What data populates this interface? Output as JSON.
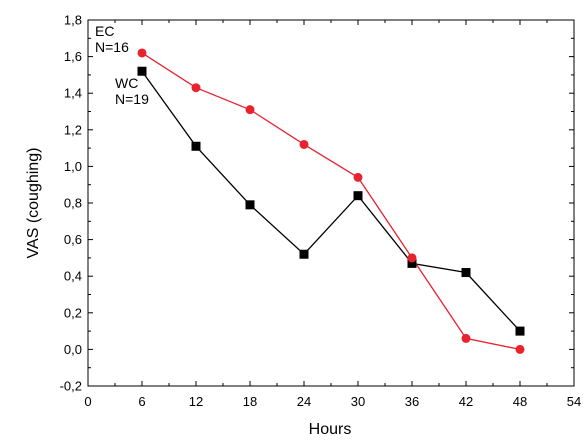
{
  "chart_data": {
    "type": "line",
    "title": "",
    "xlabel": "Hours",
    "ylabel": "VAS (coughing)",
    "xlim": [
      0,
      54
    ],
    "ylim": [
      -0.2,
      1.8
    ],
    "xticks": [
      0,
      6,
      12,
      18,
      24,
      30,
      36,
      42,
      48,
      54
    ],
    "xtick_labels": [
      "0",
      "6",
      "12",
      "18",
      "24",
      "30",
      "36",
      "42",
      "48",
      "54"
    ],
    "yticks": [
      -0.2,
      0.0,
      0.2,
      0.4,
      0.6,
      0.8,
      1.0,
      1.2,
      1.4,
      1.6,
      1.8
    ],
    "ytick_labels": [
      "-0,2",
      "0,0",
      "0,2",
      "0,4",
      "0,6",
      "0,8",
      "1,0",
      "1,2",
      "1,4",
      "1,6",
      "1,8"
    ],
    "grid": false,
    "legend": "none",
    "series": [
      {
        "name": "EC",
        "marker": "circle",
        "color": "#e8232e",
        "x": [
          6,
          12,
          18,
          24,
          30,
          36,
          42,
          48
        ],
        "y": [
          1.62,
          1.43,
          1.31,
          1.12,
          0.94,
          0.5,
          0.06,
          0.0
        ]
      },
      {
        "name": "WC",
        "marker": "square",
        "color": "#000000",
        "x": [
          6,
          12,
          18,
          24,
          30,
          36,
          42,
          48
        ],
        "y": [
          1.52,
          1.11,
          0.79,
          0.52,
          0.84,
          0.47,
          0.42,
          0.1
        ]
      }
    ],
    "annotations": [
      {
        "lines": [
          "EC",
          "N=16"
        ]
      },
      {
        "lines": [
          "WC",
          "N=19"
        ]
      }
    ]
  }
}
